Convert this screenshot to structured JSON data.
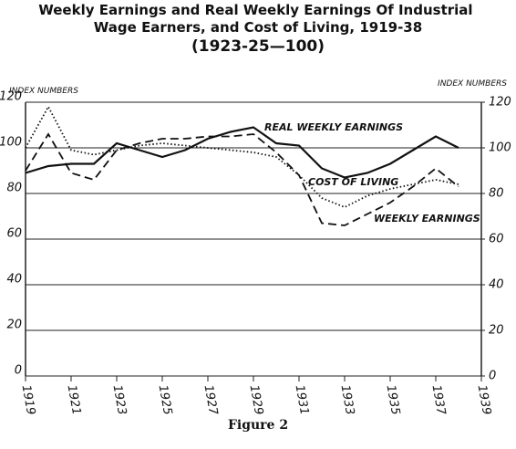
{
  "chart_data": {
    "type": "line",
    "title": "Weekly Earnings and Real Weekly Earnings Of Industrial Wage Earners, and Cost of Living, 1919-38",
    "subtitle": "(1923-25—100)",
    "ylabel": "INDEX NUMBERS",
    "y2label": "INDEX NUMBERS",
    "caption": "Figure 2",
    "x": [
      1919,
      1920,
      1921,
      1922,
      1923,
      1924,
      1925,
      1926,
      1927,
      1928,
      1929,
      1930,
      1931,
      1932,
      1933,
      1934,
      1935,
      1936,
      1937,
      1938
    ],
    "series": [
      {
        "name": "REAL WEEKLY EARNINGS",
        "color": "#111",
        "style": "solid",
        "values": [
          89,
          92,
          93,
          93,
          102,
          99,
          96,
          99,
          104,
          107,
          109,
          102,
          101,
          91,
          87,
          89,
          93,
          99,
          105,
          100
        ]
      },
      {
        "name": "COST OF LIVING",
        "color": "#111",
        "style": "dotted",
        "values": [
          100,
          118,
          99,
          97,
          99,
          101,
          102,
          101,
          100,
          99,
          98,
          96,
          88,
          78,
          74,
          79,
          82,
          84,
          86,
          84
        ]
      },
      {
        "name": "WEEKLY EARNINGS",
        "color": "#111",
        "style": "dashed",
        "values": [
          90,
          106,
          89,
          86,
          99,
          102,
          104,
          104,
          105,
          105,
          106,
          98,
          88,
          67,
          66,
          71,
          76,
          83,
          91,
          83
        ]
      }
    ],
    "xlim": [
      1919,
      1939
    ],
    "xticks": [
      1919,
      1921,
      1923,
      1925,
      1927,
      1929,
      1931,
      1933,
      1935,
      1937,
      1939
    ],
    "ylim": [
      0,
      120
    ],
    "yticks": [
      0,
      20,
      40,
      60,
      80,
      100,
      120
    ],
    "y2lim": [
      0,
      120
    ],
    "y2ticks": [
      0,
      20,
      40,
      60,
      80,
      100,
      120
    ],
    "grid": true
  }
}
